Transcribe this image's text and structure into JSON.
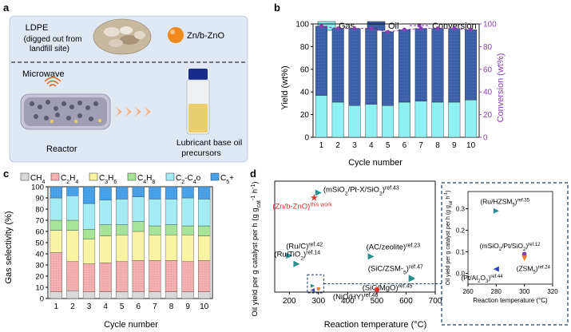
{
  "panels": {
    "a": {
      "letter": "a",
      "ldpe_label": "LDPE",
      "ldpe_note": "(digged out from",
      "ldpe_note2": "landfill site)",
      "catalyst_label": "Zn/b-ZnO",
      "microwave_label": "Microwave",
      "reactor_label": "Reactor",
      "product_label": "Lubricant base oil",
      "product_label2": "precursors"
    },
    "b": {
      "letter": "b"
    },
    "c": {
      "letter": "c"
    },
    "d": {
      "letter": "d"
    }
  },
  "chart_data": [
    {
      "id": "b",
      "type": "bar",
      "stacked": true,
      "categories": [
        "1",
        "2",
        "3",
        "4",
        "5",
        "6",
        "7",
        "8",
        "9",
        "10"
      ],
      "series": [
        {
          "name": "Gas",
          "values": [
            37,
            31,
            28,
            29,
            28,
            31,
            32,
            31,
            31,
            33
          ],
          "color": "#8ff0f3"
        },
        {
          "name": "Oil",
          "values": [
            61,
            65,
            68,
            67,
            65,
            64,
            64,
            65,
            65,
            62
          ],
          "color": "#3b5fa8"
        }
      ],
      "line_series": {
        "name": "Conversion",
        "values": [
          98,
          96,
          96,
          96,
          93,
          95,
          96,
          96,
          96,
          95
        ],
        "color": "#8a3fb5",
        "axis": "right"
      },
      "xlabel": "Cycle number",
      "ylabel": "Yield (wt%)",
      "y2label": "Conversion (wt%)",
      "ylim": [
        0,
        100
      ],
      "y2lim": [
        0,
        100
      ],
      "yticks": [
        0,
        20,
        40,
        60,
        80,
        100
      ],
      "legend": "top"
    },
    {
      "id": "c",
      "type": "bar",
      "stacked": true,
      "categories": [
        "1",
        "2",
        "3",
        "4",
        "5",
        "6",
        "7",
        "8",
        "9",
        "10"
      ],
      "series": [
        {
          "name": "CH4",
          "sub": "4",
          "base": "CH",
          "values": [
            6,
            7,
            6,
            6,
            6,
            6,
            6,
            6,
            6,
            6
          ],
          "color": "#d9d9d9"
        },
        {
          "name": "C2H4",
          "values": [
            35,
            26,
            25,
            26,
            27,
            28,
            28,
            28,
            27,
            28
          ],
          "color": "#f4b1b1"
        },
        {
          "name": "C3H6",
          "values": [
            20,
            28,
            22,
            24,
            24,
            26,
            23,
            23,
            24,
            22
          ],
          "color": "#faf3a3"
        },
        {
          "name": "C4H8",
          "values": [
            9,
            9,
            9,
            10,
            9,
            9,
            8,
            9,
            8,
            9
          ],
          "color": "#a8e39a"
        },
        {
          "name": "C2-C4o",
          "values": [
            20,
            22,
            23,
            22,
            23,
            22,
            24,
            23,
            25,
            24
          ],
          "color": "#a3ecf3"
        },
        {
          "name": "C5+",
          "values": [
            10,
            8,
            15,
            12,
            11,
            9,
            11,
            11,
            10,
            11
          ],
          "color": "#4aa3e8"
        }
      ],
      "xlabel": "Cycle number",
      "ylabel": "Gas selectivity (%)",
      "ylim": [
        0,
        100
      ],
      "yticks": [
        0,
        10,
        20,
        30,
        40,
        50,
        60,
        70,
        80,
        90,
        100
      ],
      "legend": "top"
    },
    {
      "id": "d",
      "type": "scatter",
      "xlabel": "Reaction temperature (°C)",
      "ylabel": "Oil yield per g catalyst per h (g g",
      "ylabel_sub": "cat",
      "ylabel_sup": "-1",
      "ylabel_tail": " h",
      "ylabel_sup2": "-1",
      "ylabel_end": ")",
      "xlim": [
        150,
        700
      ],
      "xticks": [
        200,
        300,
        400,
        500,
        600,
        700
      ],
      "points": [
        {
          "label": "(mSiO2/Pt-X/SiO2)",
          "ref": "ref.43",
          "x": 300,
          "y": 5.9,
          "marker": "tri-right",
          "color": "#2a8f8f"
        },
        {
          "label": "(Zn/b-ZnO)",
          "ref": "this work",
          "x": 285,
          "y": 5.6,
          "marker": "star",
          "color": "#e03030"
        },
        {
          "label": "(Ru/C)",
          "ref": "ref.42",
          "x": 200,
          "y": 2.1,
          "marker": "tri-right",
          "color": "#2a8f8f"
        },
        {
          "label": "(AC/zeolite)",
          "ref": "ref.23",
          "x": 480,
          "y": 2.05,
          "marker": "tri-right",
          "color": "#2a8f8f"
        },
        {
          "label": "(Ru/TiO2)",
          "ref": "ref.14",
          "x": 225,
          "y": 1.6,
          "marker": "tri-right",
          "color": "#2a8f8f"
        },
        {
          "label": "(SiC/ZSM-5)",
          "ref": "ref.47",
          "x": 620,
          "y": 0.75,
          "marker": "tri-right",
          "color": "#2a8f8f"
        },
        {
          "label": "(SiC/MgO)",
          "ref": "ref.45",
          "x": 620,
          "y": 0.7,
          "marker": "tri-right",
          "color": "#2a8f8f"
        },
        {
          "label": "(NiO/HY)",
          "ref": "ref.46",
          "x": 500,
          "y": 0.05,
          "marker": "circle",
          "color": "#e03030"
        },
        {
          "label": "",
          "ref": "",
          "x": 280,
          "y": 0.28,
          "marker": "tri-right",
          "color": "#2a8f8f"
        },
        {
          "label": "",
          "ref": "",
          "x": 300,
          "y": 0.1,
          "marker": "circle",
          "color": "#c96fc9"
        },
        {
          "label": "",
          "ref": "",
          "x": 300,
          "y": 0.07,
          "marker": "tri-down",
          "color": "#f08030"
        },
        {
          "label": "",
          "ref": "",
          "x": 280,
          "y": 0.02,
          "marker": "tri-left",
          "color": "#3040c0"
        }
      ],
      "inset": {
        "xlabel": "Reaction temperature (°C)",
        "ylabel": "Oil yield per g catalyst per h (g g",
        "ylabel_sub": "oil",
        "ylabel_tail": " h",
        "ylabel_sup": "-1",
        "ylabel_end": ")",
        "xlim": [
          260,
          320
        ],
        "xticks": [
          260,
          280,
          300,
          320
        ],
        "ylim": [
          -0.05,
          0.38
        ],
        "yticks": [
          0.0,
          0.1,
          0.2,
          0.3
        ],
        "points": [
          {
            "label": "(Ru/HZSM5)",
            "ref": "ref.35",
            "x": 280,
            "y": 0.29,
            "marker": "tri-right",
            "color": "#2a8f8f"
          },
          {
            "label": "(mSiO2/Pt/SiO2)",
            "ref": "ref.12",
            "x": 300,
            "y": 0.09,
            "marker": "circle",
            "color": "#8a3fb5"
          },
          {
            "label": "(ZSM5)",
            "ref": "ref.24",
            "x": 300,
            "y": 0.07,
            "marker": "tri-down",
            "color": "#f08030"
          },
          {
            "label": "(Pt/Al2O3)",
            "ref": "ref.44",
            "x": 280,
            "y": 0.02,
            "marker": "tri-left",
            "color": "#3040c0"
          }
        ]
      }
    }
  ],
  "colors": {
    "panel_a_bg": "#dfe8f3",
    "accent_purple": "#8a3fb5"
  }
}
